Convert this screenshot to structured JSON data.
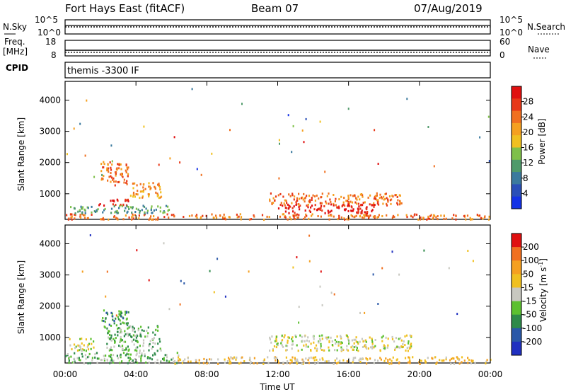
{
  "header": {
    "station": "Fort Hays East (fitACF)",
    "beam": "Beam 07",
    "date": "07/Aug/2019"
  },
  "top_panels": {
    "nsky_label": "N.Sky",
    "nsky_ticks": [
      "10^5",
      "10^0"
    ],
    "nsearch_label": "N.Search",
    "freq_label_1": "Freq.",
    "freq_label_2": "[MHz]",
    "freq_ticks": [
      "18",
      "8"
    ],
    "nave_ticks": [
      "60",
      "0"
    ],
    "nave_label": "Nave",
    "cpid_label": "CPID",
    "cpid_value": "themis -3300 IF"
  },
  "chart_data": [
    {
      "type": "heatmap",
      "name": "power",
      "ylabel": "Slant Range [km]",
      "xlabel": "Time UT",
      "x_ticks": [
        "00:00",
        "04:00",
        "08:00",
        "12:00",
        "16:00",
        "20:00",
        "00:00"
      ],
      "y_ticks": [
        1000,
        2000,
        3000,
        4000
      ],
      "ylim": [
        180,
        4600
      ],
      "xlim_hours": [
        0,
        24
      ],
      "colorbar": {
        "label": "Power [dB]",
        "ticks": [
          "4",
          "8",
          "12",
          "16",
          "20",
          "24",
          "28"
        ],
        "colors": [
          "#1432e6",
          "#2a4fb8",
          "#3b7a9e",
          "#4f9a6a",
          "#7fc04a",
          "#f0c020",
          "#f5a020",
          "#f07020",
          "#e83818",
          "#e01010"
        ]
      },
      "patches": [
        {
          "t": [
            2.0,
            3.6
          ],
          "r": [
            1300,
            2050
          ],
          "level": 7
        },
        {
          "t": [
            3.6,
            5.4
          ],
          "r": [
            900,
            1400
          ],
          "level": 6
        },
        {
          "t": [
            1.8,
            3.6
          ],
          "r": [
            650,
            850
          ],
          "level": 9
        },
        {
          "t": [
            0.0,
            24.0
          ],
          "r": [
            200,
            380
          ],
          "level": 7
        },
        {
          "t": [
            11.5,
            19.0
          ],
          "r": [
            650,
            1050
          ],
          "level": 7
        },
        {
          "t": [
            12.0,
            17.5
          ],
          "r": [
            400,
            700
          ],
          "level": 9
        },
        {
          "t": [
            0.0,
            6.0
          ],
          "r": [
            400,
            650
          ],
          "level": 3
        }
      ]
    },
    {
      "type": "heatmap",
      "name": "velocity",
      "ylabel": "Slant Range [km]",
      "xlabel": "Time UT",
      "x_ticks": [
        "00:00",
        "04:00",
        "08:00",
        "12:00",
        "16:00",
        "20:00",
        "00:00"
      ],
      "y_ticks": [
        1000,
        2000,
        3000,
        4000
      ],
      "ylim": [
        180,
        4600
      ],
      "xlim_hours": [
        0,
        24
      ],
      "colorbar": {
        "label": "Velocity [m s",
        "label_exp": "-1",
        "label_end": "]",
        "ticks": [
          "200",
          "100",
          "50",
          "15",
          "-15",
          "-50",
          "-100",
          "-200"
        ],
        "colors": [
          "#2030c0",
          "#2a58a8",
          "#2e8a4a",
          "#5cc030",
          "#c8c8c0",
          "#f0c020",
          "#f5a020",
          "#f07020",
          "#e01010"
        ]
      },
      "patches": [
        {
          "t": [
            2.0,
            3.6
          ],
          "r": [
            1300,
            1900
          ],
          "level": 2
        },
        {
          "t": [
            2.2,
            5.4
          ],
          "r": [
            600,
            1400
          ],
          "level": 3
        },
        {
          "t": [
            0.0,
            6.5
          ],
          "r": [
            200,
            550
          ],
          "level": 3
        },
        {
          "t": [
            6.0,
            24.0
          ],
          "r": [
            180,
            400
          ],
          "level": 5
        },
        {
          "t": [
            11.5,
            19.5
          ],
          "r": [
            600,
            1100
          ],
          "level": 4
        },
        {
          "t": [
            0.2,
            1.6
          ],
          "r": [
            600,
            1000
          ],
          "level": 4
        }
      ]
    }
  ],
  "colors": {
    "scatter_bg": "#000000",
    "axes": "#000000"
  }
}
